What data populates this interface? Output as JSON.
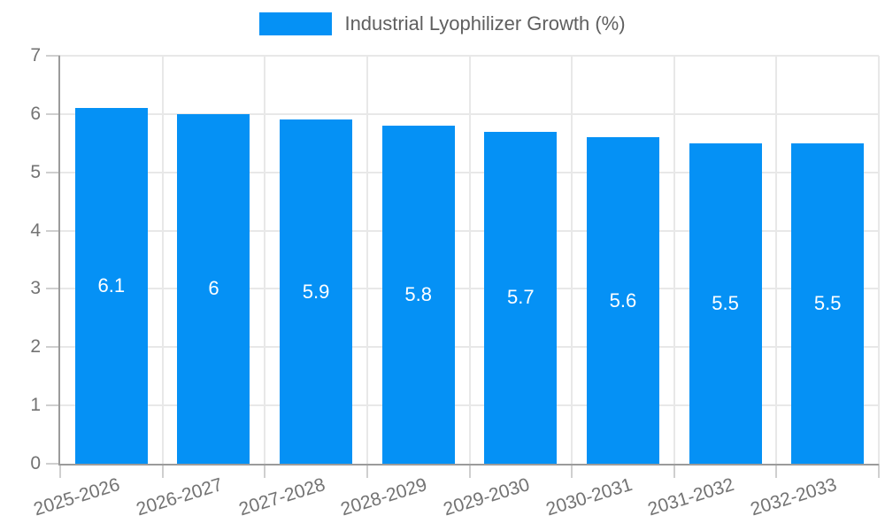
{
  "legend": {
    "label": "Industrial Lyophilizer Growth (%)"
  },
  "colors": {
    "bar": "#0591f5",
    "axis_line": "#9b9b9b",
    "grid_line": "#e8e8e8",
    "tick_mark": "#cfcfcf",
    "tick_label": "#737373",
    "legend_text": "#5f5f5f",
    "bar_value_text": "#ffffff",
    "background": "#ffffff"
  },
  "chart_data": {
    "type": "bar",
    "title": "Industrial Lyophilizer Growth (%)",
    "categories": [
      "2025-2026",
      "2026-2027",
      "2027-2028",
      "2028-2029",
      "2029-2030",
      "2030-2031",
      "2031-2032",
      "2032-2033"
    ],
    "values": [
      6.1,
      6,
      5.9,
      5.8,
      5.7,
      5.6,
      5.5,
      5.5
    ],
    "value_labels": [
      "6.1",
      "6",
      "5.9",
      "5.8",
      "5.7",
      "5.6",
      "5.5",
      "5.5"
    ],
    "xlabel": "",
    "ylabel": "",
    "ylim": [
      0,
      7
    ],
    "yticks": [
      0,
      1,
      2,
      3,
      4,
      5,
      6,
      7
    ],
    "grid": true,
    "legend_position": "top",
    "bar_color": "#0591f5",
    "value_label_position": "center",
    "xtick_rotation_deg": -17
  }
}
